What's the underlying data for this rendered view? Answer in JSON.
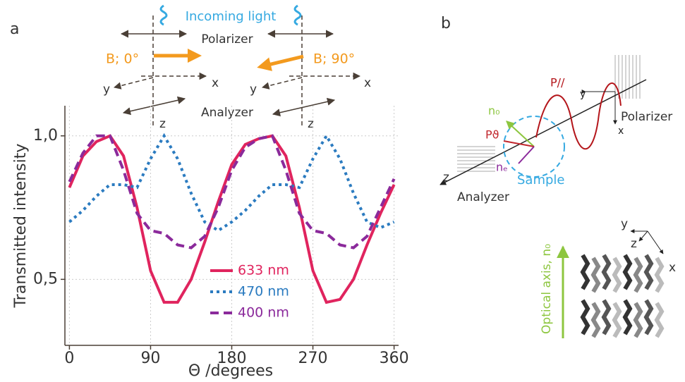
{
  "chart_data": {
    "type": "line",
    "x_label": "Θ /degrees",
    "y_label": "Transmitted intensity",
    "x": [
      0,
      15,
      30,
      45,
      60,
      75,
      90,
      105,
      120,
      135,
      150,
      165,
      180,
      195,
      210,
      225,
      240,
      255,
      270,
      285,
      300,
      315,
      330,
      345,
      360
    ],
    "series": [
      {
        "name": "633 nm",
        "color": "#e0245e",
        "dash": "solid",
        "values": [
          0.82,
          0.93,
          0.98,
          1.0,
          0.93,
          0.75,
          0.53,
          0.42,
          0.42,
          0.5,
          0.63,
          0.77,
          0.9,
          0.97,
          0.99,
          1.0,
          0.93,
          0.75,
          0.53,
          0.42,
          0.43,
          0.5,
          0.62,
          0.73,
          0.83
        ]
      },
      {
        "name": "470 nm",
        "color": "#2b7bc0",
        "dash": "dotted",
        "values": [
          0.7,
          0.74,
          0.79,
          0.83,
          0.83,
          0.82,
          0.92,
          1.0,
          0.92,
          0.8,
          0.7,
          0.67,
          0.7,
          0.74,
          0.79,
          0.83,
          0.83,
          0.82,
          0.92,
          1.0,
          0.92,
          0.8,
          0.7,
          0.68,
          0.7
        ]
      },
      {
        "name": "400 nm",
        "color": "#8b2a9b",
        "dash": "dashed",
        "values": [
          0.84,
          0.94,
          1.0,
          1.0,
          0.88,
          0.73,
          0.67,
          0.66,
          0.62,
          0.61,
          0.65,
          0.75,
          0.88,
          0.96,
          0.99,
          1.0,
          0.88,
          0.73,
          0.67,
          0.66,
          0.62,
          0.61,
          0.65,
          0.75,
          0.85
        ]
      }
    ],
    "xlim": [
      -5,
      365
    ],
    "xticks": [
      0,
      90,
      180,
      270,
      360
    ],
    "ylim": [
      0.27,
      1.105
    ],
    "yticks": [
      {
        "value": 0.5,
        "label": "0,5"
      },
      {
        "value": 1.0,
        "label": "1,0"
      }
    ],
    "grid": true
  },
  "diagram_a": {
    "panel": "a",
    "incoming_light": "Incoming light",
    "polarizer": "Polarizer",
    "analyzer": "Analyzer",
    "b_0": "B; 0°",
    "b_90": "B; 90°",
    "axes_left": [
      "y",
      "x",
      "z"
    ],
    "axes_right": [
      "y",
      "x",
      "z"
    ]
  },
  "diagram_b": {
    "panel": "b",
    "p_parallel": "P//",
    "p_theta": "Pϑ",
    "n_o": "n₀",
    "n_e": "nₑ",
    "sample": "Sample",
    "polarizer": "Polarizer",
    "analyzer": "Analyzer",
    "z": "z",
    "y": "y",
    "x": "x",
    "optical_axis": "Optical axis, n₀",
    "axes": [
      "y",
      "z",
      "x"
    ]
  }
}
